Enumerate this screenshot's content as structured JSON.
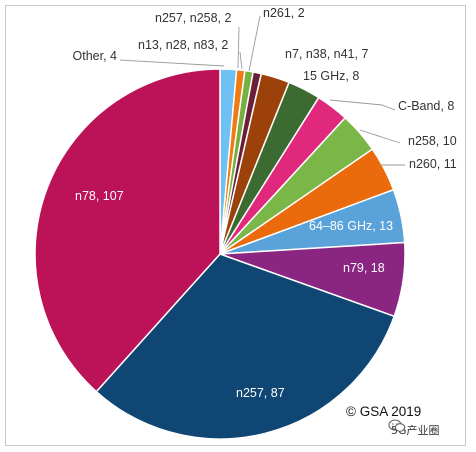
{
  "chart_data": {
    "type": "pie",
    "slices": [
      {
        "label": "Other",
        "value": 4,
        "color": "#6ec1f2",
        "display": "Other, 4"
      },
      {
        "label": "n257, n258",
        "value": 2,
        "color": "#ef7b12",
        "display": "n257, n258, 2"
      },
      {
        "label": "n13, n28, n83",
        "value": 2,
        "color": "#76b041",
        "display": "n13, n28, n83, 2"
      },
      {
        "label": "n261",
        "value": 2,
        "color": "#6b1e3a",
        "display": "n261, 2"
      },
      {
        "label": "n7, n38, n41",
        "value": 7,
        "color": "#9b4109",
        "display": "n7, n38, n41, 7"
      },
      {
        "label": "15 GHz",
        "value": 8,
        "color": "#3c6b32",
        "display": "15 GHz, 8"
      },
      {
        "label": "C-Band",
        "value": 8,
        "color": "#e0297d",
        "display": "C-Band, 8"
      },
      {
        "label": "n258",
        "value": 10,
        "color": "#7ab648",
        "display": "n258, 10"
      },
      {
        "label": "n260",
        "value": 11,
        "color": "#ea6a0c",
        "display": "n260, 11"
      },
      {
        "label": "64–86 GHz",
        "value": 13,
        "color": "#5aa2da",
        "display": "64–86 GHz, 13"
      },
      {
        "label": "n79",
        "value": 18,
        "color": "#8a2582",
        "display": "n79, 18"
      },
      {
        "label": "n257",
        "value": 87,
        "color": "#0f4674",
        "display": "n257, 87"
      },
      {
        "label": "n78",
        "value": 107,
        "color": "#bb1258",
        "display": "n78, 107"
      }
    ]
  },
  "copyright": "© GSA 2019",
  "watermark": {
    "text": "5G产业圈",
    "icon": "wechat-icon"
  }
}
